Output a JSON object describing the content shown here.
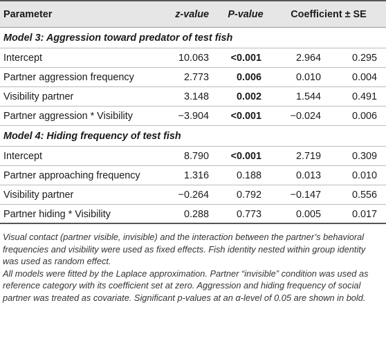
{
  "header": {
    "parameter": "Parameter",
    "z_value": "z-value",
    "p_value": "P-value",
    "coef_se": "Coefficient ± SE"
  },
  "model3": {
    "title": "Model 3: Aggression toward predator of test fish",
    "rows": [
      {
        "param": "Intercept",
        "z": "10.063",
        "p": "<0.001",
        "p_bold": true,
        "coef": "2.964",
        "se": "0.295"
      },
      {
        "param": "Partner aggression frequency",
        "z": "2.773",
        "p": "0.006",
        "p_bold": true,
        "coef": "0.010",
        "se": "0.004"
      },
      {
        "param": "Visibility partner",
        "z": "3.148",
        "p": "0.002",
        "p_bold": true,
        "coef": "1.544",
        "se": "0.491"
      },
      {
        "param": "Partner aggression * Visibility",
        "z": "−3.904",
        "p": "<0.001",
        "p_bold": true,
        "coef": "−0.024",
        "se": "0.006"
      }
    ]
  },
  "model4": {
    "title": "Model 4: Hiding frequency of test fish",
    "rows": [
      {
        "param": "Intercept",
        "z": "8.790",
        "p": "<0.001",
        "p_bold": true,
        "coef": "2.719",
        "se": "0.309"
      },
      {
        "param": "Partner approaching frequency",
        "z": "1.316",
        "p": "0.188",
        "p_bold": false,
        "coef": "0.013",
        "se": "0.010"
      },
      {
        "param": "Visibility partner",
        "z": "−0.264",
        "p": "0.792",
        "p_bold": false,
        "coef": "−0.147",
        "se": "0.556"
      },
      {
        "param": "Partner hiding * Visibility",
        "z": "0.288",
        "p": "0.773",
        "p_bold": false,
        "coef": "0.005",
        "se": "0.017"
      }
    ]
  },
  "notes": {
    "note1": "Visual contact (partner visible, invisible) and the interaction between the partner’s behavioral frequencies and visibility were used as fixed effects. Fish identity nested within group identity was used as random effect.",
    "note2": "All models were fitted by the Laplace approximation. Partner “invisible” condition was used as reference category with its coefficient set at zero. Aggression and hiding frequency of social partner was treated as covariate. Significant p-values at an α-level of 0.05 are shown in bold."
  }
}
